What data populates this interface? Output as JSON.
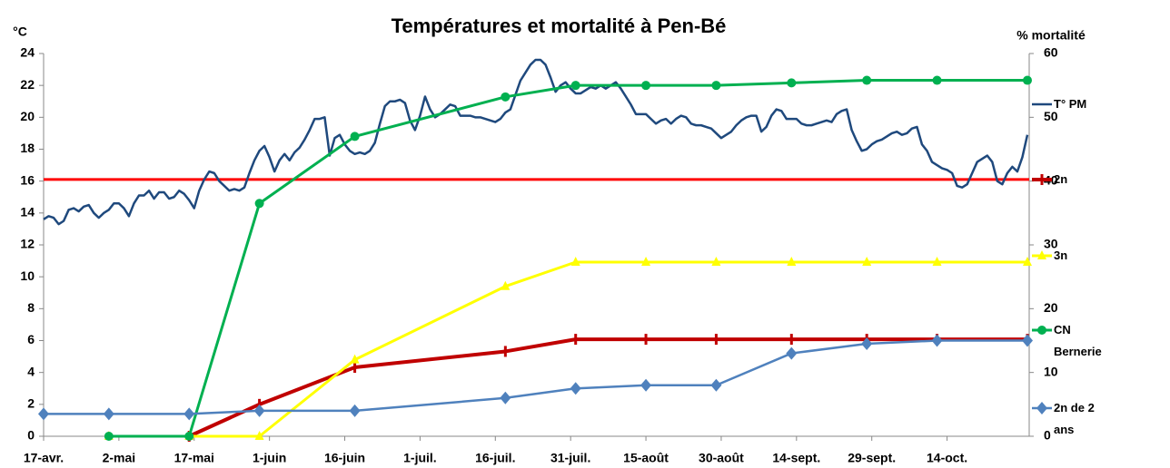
{
  "chart_data": {
    "type": "line",
    "title": "Températures et mortalité à Pen-Bé",
    "y_label": "°C",
    "y2_label": "% mortalité",
    "xlim": [
      0,
      196
    ],
    "xticks": [
      {
        "value": 0,
        "label": "17-avr."
      },
      {
        "value": 15,
        "label": "2-mai"
      },
      {
        "value": 30,
        "label": "17-mai"
      },
      {
        "value": 45,
        "label": "1-juin"
      },
      {
        "value": 60,
        "label": "16-juin"
      },
      {
        "value": 75,
        "label": "1-juil."
      },
      {
        "value": 90,
        "label": "16-juil."
      },
      {
        "value": 105,
        "label": "31-juil."
      },
      {
        "value": 120,
        "label": "15-août"
      },
      {
        "value": 135,
        "label": "30-août"
      },
      {
        "value": 150,
        "label": "14-sept."
      },
      {
        "value": 165,
        "label": "29-sept."
      },
      {
        "value": 180,
        "label": "14-oct."
      }
    ],
    "ylim": [
      0,
      24
    ],
    "yticks": [
      0,
      2,
      4,
      6,
      8,
      10,
      12,
      14,
      16,
      18,
      20,
      22,
      24
    ],
    "y2lim": [
      0,
      60
    ],
    "y2ticks": [
      0,
      10,
      20,
      30,
      40,
      50,
      60
    ],
    "grid": false,
    "legend": "right",
    "hline": {
      "value": 16.1,
      "color": "#ff0000"
    },
    "series": [
      {
        "name": "T° PM",
        "color": "#1f497d",
        "marker": "none",
        "width": 2.5,
        "x": [
          0,
          1,
          2,
          3,
          4,
          5,
          6,
          7,
          8,
          9,
          10,
          11,
          12,
          13,
          14,
          15,
          16,
          17,
          18,
          19,
          20,
          21,
          22,
          23,
          24,
          25,
          26,
          27,
          28,
          29,
          30,
          31,
          32,
          33,
          34,
          35,
          36,
          37,
          38,
          39,
          40,
          41,
          42,
          43,
          44,
          45,
          46,
          47,
          48,
          49,
          50,
          51,
          52,
          53,
          54,
          55,
          56,
          57,
          58,
          59,
          60,
          61,
          62,
          63,
          64,
          65,
          66,
          67,
          68,
          69,
          70,
          71,
          72,
          73,
          74,
          75,
          76,
          77,
          78,
          79,
          80,
          81,
          82,
          83,
          84,
          85,
          86,
          87,
          88,
          89,
          90,
          91,
          92,
          93,
          94,
          95,
          96,
          97,
          98,
          99,
          100,
          101,
          102,
          103,
          104,
          105,
          106,
          107,
          108,
          109,
          110,
          111,
          112,
          113,
          114,
          115,
          116,
          117,
          118,
          119,
          120,
          121,
          122,
          123,
          124,
          125,
          126,
          127,
          128,
          129,
          130,
          131,
          132,
          133,
          134,
          135,
          136,
          137,
          138,
          139,
          140,
          141,
          142,
          143,
          144,
          145,
          146,
          147,
          148,
          149,
          150,
          151,
          152,
          153,
          154,
          155,
          156,
          157,
          158,
          159,
          160,
          161,
          162,
          163,
          164,
          165,
          166,
          167,
          168,
          169,
          170,
          171,
          172,
          173,
          174,
          175,
          176,
          177,
          178,
          179,
          180,
          181,
          182,
          183,
          184,
          185,
          186,
          187,
          188,
          189,
          190,
          191,
          192,
          193,
          194,
          195,
          196
        ],
        "values": [
          13.6,
          13.8,
          13.7,
          13.3,
          13.5,
          14.2,
          14.3,
          14.1,
          14.4,
          14.5,
          14.0,
          13.7,
          14.0,
          14.2,
          14.6,
          14.6,
          14.3,
          13.8,
          14.6,
          15.1,
          15.1,
          15.4,
          14.9,
          15.3,
          15.3,
          14.9,
          15.0,
          15.4,
          15.2,
          14.8,
          14.3,
          15.4,
          16.1,
          16.6,
          16.5,
          16.0,
          15.7,
          15.4,
          15.5,
          15.4,
          15.6,
          16.5,
          17.3,
          17.9,
          18.2,
          17.5,
          16.6,
          17.3,
          17.7,
          17.3,
          17.8,
          18.1,
          18.6,
          19.2,
          19.9,
          19.9,
          20.0,
          17.6,
          18.7,
          18.9,
          18.3,
          17.9,
          17.7,
          17.8,
          17.7,
          17.9,
          18.4,
          19.6,
          20.7,
          21.0,
          21.0,
          21.1,
          20.9,
          19.8,
          19.2,
          20.1,
          21.3,
          20.5,
          20.0,
          20.2,
          20.5,
          20.8,
          20.7,
          20.1,
          20.1,
          20.1,
          20.0,
          20.0,
          19.9,
          19.8,
          19.7,
          19.9,
          20.3,
          20.5,
          21.4,
          22.3,
          22.8,
          23.3,
          23.6,
          23.6,
          23.3,
          22.5,
          21.6,
          22.0,
          22.2,
          21.8,
          21.5,
          21.5,
          21.7,
          21.9,
          21.8,
          22.0,
          21.8,
          22.0,
          22.2,
          21.8,
          21.3,
          20.8,
          20.2,
          20.2,
          20.2,
          19.9,
          19.6,
          19.8,
          19.9,
          19.6,
          19.9,
          20.1,
          20.0,
          19.6,
          19.5,
          19.5,
          19.4,
          19.3,
          19.0,
          18.7,
          18.9,
          19.1,
          19.5,
          19.8,
          20.0,
          20.1,
          20.1,
          19.1,
          19.4,
          20.1,
          20.5,
          20.4,
          19.9,
          19.9,
          19.9,
          19.6,
          19.5,
          19.5,
          19.6,
          19.7,
          19.8,
          19.7,
          20.2,
          20.4,
          20.5,
          19.2,
          18.5,
          17.9,
          18.0,
          18.3,
          18.5,
          18.6,
          18.8,
          19.0,
          19.1,
          18.9,
          19.0,
          19.3,
          19.4,
          18.3,
          17.9,
          17.2,
          17.0,
          16.8,
          16.7,
          16.5,
          15.7,
          15.6,
          15.8,
          16.5,
          17.2,
          17.4,
          17.6,
          17.2,
          16.0,
          15.8,
          16.5,
          16.9,
          16.6,
          17.5,
          18.9
        ]
      },
      {
        "name": "2n",
        "color": "#c00000",
        "marker": "dash",
        "width": 4,
        "axis": "y2",
        "x": [
          29,
          43,
          62,
          92,
          106,
          120,
          134,
          149,
          164,
          178,
          196
        ],
        "values": [
          0,
          5,
          10.8,
          13.3,
          15.2,
          15.2,
          15.2,
          15.2,
          15.2,
          15.2,
          15.2
        ]
      },
      {
        "name": "3n",
        "color": "#ffff00",
        "marker": "triangle",
        "width": 3,
        "axis": "y2",
        "x": [
          13,
          29,
          43,
          62,
          92,
          106,
          120,
          134,
          149,
          164,
          178,
          196
        ],
        "values": [
          0,
          0,
          0,
          12,
          23.5,
          27.3,
          27.3,
          27.3,
          27.3,
          27.3,
          27.3,
          27.3
        ]
      },
      {
        "name": "CN Bernerie",
        "color": "#00b050",
        "marker": "circle",
        "width": 3,
        "axis": "y2",
        "x": [
          13,
          29,
          43,
          62,
          92,
          106,
          120,
          134,
          149,
          164,
          178,
          196
        ],
        "values": [
          0,
          0,
          36.5,
          47,
          53.2,
          55,
          55,
          55,
          55.4,
          55.8,
          55.8,
          55.8
        ]
      },
      {
        "name": "2n de 2 ans",
        "color": "#4f81bd",
        "marker": "diamond",
        "width": 2.5,
        "axis": "y2",
        "x": [
          0,
          13,
          29,
          43,
          62,
          92,
          106,
          120,
          134,
          149,
          164,
          178,
          196
        ],
        "values": [
          3.5,
          3.5,
          3.5,
          4,
          4,
          6,
          7.5,
          8,
          8,
          13,
          14.5,
          15,
          15
        ]
      }
    ]
  }
}
